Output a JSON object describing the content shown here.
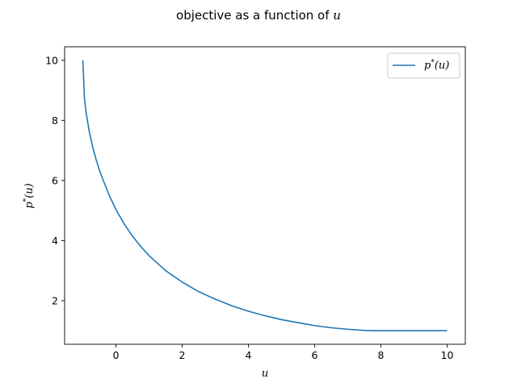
{
  "chart_data": {
    "type": "line",
    "title_prefix": "objective as a function of ",
    "title_var": "u",
    "xlabel": "u",
    "ylabel_main": "p",
    "ylabel_sup": "*",
    "ylabel_arg": "(u)",
    "xlim": [
      -1.55,
      10.55
    ],
    "ylim": [
      0.55,
      10.45
    ],
    "xticks": [
      0,
      2,
      4,
      6,
      8,
      10
    ],
    "yticks": [
      2,
      4,
      6,
      8,
      10
    ],
    "xtick_labels": [
      "0",
      "2",
      "4",
      "6",
      "8",
      "10"
    ],
    "ytick_labels": [
      "2",
      "4",
      "6",
      "8",
      "10"
    ],
    "grid": false,
    "legend_position": "top-right",
    "series": [
      {
        "name_main": "p",
        "name_sup": "*",
        "name_arg": "(u)",
        "color": "#1f77b4",
        "x": [
          -1.0,
          -0.95,
          -0.9,
          -0.8,
          -0.7,
          -0.6,
          -0.5,
          -0.4,
          -0.2,
          0.0,
          0.25,
          0.5,
          0.75,
          1.0,
          1.5,
          2.0,
          2.5,
          3.0,
          3.5,
          4.0,
          4.5,
          5.0,
          5.5,
          6.0,
          6.5,
          7.0,
          7.5,
          7.8,
          8.0,
          8.5,
          9.0,
          9.5,
          10.0
        ],
        "y": [
          10.0,
          8.7,
          8.25,
          7.6,
          7.1,
          6.7,
          6.35,
          6.05,
          5.5,
          5.03,
          4.55,
          4.15,
          3.8,
          3.5,
          3.0,
          2.62,
          2.3,
          2.05,
          1.83,
          1.65,
          1.5,
          1.37,
          1.27,
          1.17,
          1.1,
          1.05,
          1.01,
          1.0,
          1.0,
          1.0,
          1.0,
          1.0,
          1.0
        ]
      }
    ]
  }
}
